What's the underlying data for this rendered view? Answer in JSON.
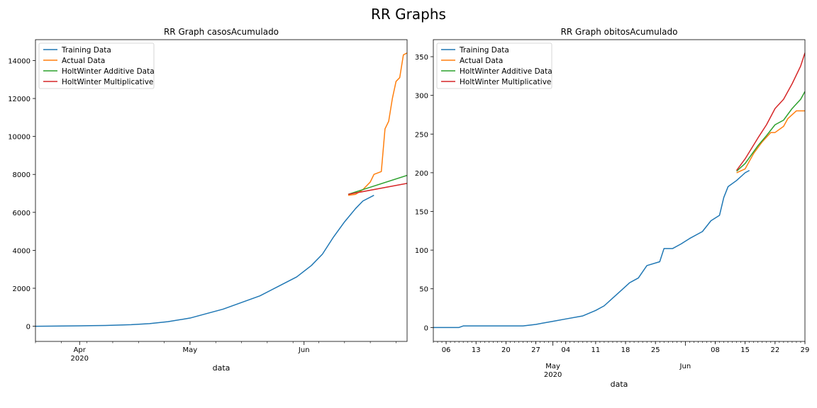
{
  "figure_title": "RR Graphs",
  "chart_data": [
    {
      "type": "line",
      "title": "RR Graph casosAcumulado",
      "xlabel": "data",
      "ylabel": "",
      "ylim": [
        -800,
        15100
      ],
      "xlim_dates": [
        "2020-03-20",
        "2020-06-29"
      ],
      "x_major_ticks": [
        {
          "date": "2020-04-01",
          "label": "Apr",
          "sublabel": "2020"
        },
        {
          "date": "2020-05-01",
          "label": "May",
          "sublabel": ""
        },
        {
          "date": "2020-06-01",
          "label": "Jun",
          "sublabel": ""
        }
      ],
      "y_ticks": [
        0,
        2000,
        4000,
        6000,
        8000,
        10000,
        12000,
        14000
      ],
      "legend": {
        "placement": "top-left",
        "entries": [
          "Training Data",
          "Actual Data",
          "HoltWinter Additive Data",
          "HoltWinter Multiplicative"
        ]
      },
      "series": [
        {
          "name": "Training Data",
          "color": "#1f77b4",
          "points": [
            [
              "2020-03-20",
              0
            ],
            [
              "2020-03-25",
              5
            ],
            [
              "2020-04-01",
              20
            ],
            [
              "2020-04-08",
              40
            ],
            [
              "2020-04-15",
              80
            ],
            [
              "2020-04-20",
              140
            ],
            [
              "2020-04-25",
              240
            ],
            [
              "2020-05-01",
              430
            ],
            [
              "2020-05-05",
              640
            ],
            [
              "2020-05-10",
              900
            ],
            [
              "2020-05-15",
              1250
            ],
            [
              "2020-05-20",
              1600
            ],
            [
              "2020-05-25",
              2100
            ],
            [
              "2020-05-30",
              2600
            ],
            [
              "2020-06-03",
              3200
            ],
            [
              "2020-06-06",
              3800
            ],
            [
              "2020-06-09",
              4700
            ],
            [
              "2020-06-12",
              5500
            ],
            [
              "2020-06-15",
              6200
            ],
            [
              "2020-06-17",
              6600
            ],
            [
              "2020-06-20",
              6900
            ]
          ]
        },
        {
          "name": "Actual Data",
          "color": "#ff7f0e",
          "points": [
            [
              "2020-06-13",
              6900
            ],
            [
              "2020-06-15",
              6950
            ],
            [
              "2020-06-17",
              7200
            ],
            [
              "2020-06-19",
              7600
            ],
            [
              "2020-06-20",
              8000
            ],
            [
              "2020-06-22",
              8150
            ],
            [
              "2020-06-23",
              10400
            ],
            [
              "2020-06-24",
              10800
            ],
            [
              "2020-06-25",
              12000
            ],
            [
              "2020-06-26",
              12900
            ],
            [
              "2020-06-27",
              13100
            ],
            [
              "2020-06-28",
              14300
            ],
            [
              "2020-06-29",
              14400
            ]
          ]
        },
        {
          "name": "HoltWinter Additive Data",
          "color": "#2ca02c",
          "points": [
            [
              "2020-06-13",
              6950
            ],
            [
              "2020-06-29",
              7950
            ]
          ]
        },
        {
          "name": "HoltWinter Multiplicative",
          "color": "#d62728",
          "points": [
            [
              "2020-06-13",
              6950
            ],
            [
              "2020-06-29",
              7530
            ]
          ]
        }
      ]
    },
    {
      "type": "line",
      "title": "RR Graph obitosAcumulado",
      "xlabel": "data",
      "ylabel": "",
      "ylim": [
        -18,
        372
      ],
      "xlim_dates": [
        "2020-04-03",
        "2020-06-29"
      ],
      "x_major_ticks": [
        {
          "date": "2020-05-01",
          "label": "May",
          "sublabel": "2020"
        },
        {
          "date": "2020-06-01",
          "label": "Jun",
          "sublabel": ""
        }
      ],
      "x_minor_ticks": [
        {
          "date": "2020-04-06",
          "label": "06"
        },
        {
          "date": "2020-04-13",
          "label": "13"
        },
        {
          "date": "2020-04-20",
          "label": "20"
        },
        {
          "date": "2020-04-27",
          "label": "27"
        },
        {
          "date": "2020-05-04",
          "label": "04"
        },
        {
          "date": "2020-05-11",
          "label": "11"
        },
        {
          "date": "2020-05-18",
          "label": "18"
        },
        {
          "date": "2020-05-25",
          "label": "25"
        },
        {
          "date": "2020-06-08",
          "label": "08"
        },
        {
          "date": "2020-06-15",
          "label": "15"
        },
        {
          "date": "2020-06-22",
          "label": "22"
        },
        {
          "date": "2020-06-29",
          "label": "29"
        }
      ],
      "y_ticks": [
        0,
        50,
        100,
        150,
        200,
        250,
        300,
        350
      ],
      "legend": {
        "placement": "top-left",
        "entries": [
          "Training Data",
          "Actual Data",
          "HoltWinter Additive Data",
          "HoltWinter Multiplicative"
        ]
      },
      "series": [
        {
          "name": "Training Data",
          "color": "#1f77b4",
          "points": [
            [
              "2020-04-03",
              0
            ],
            [
              "2020-04-09",
              0
            ],
            [
              "2020-04-10",
              2
            ],
            [
              "2020-04-24",
              2
            ],
            [
              "2020-04-27",
              4
            ],
            [
              "2020-05-01",
              8
            ],
            [
              "2020-05-04",
              11
            ],
            [
              "2020-05-08",
              15
            ],
            [
              "2020-05-11",
              22
            ],
            [
              "2020-05-13",
              28
            ],
            [
              "2020-05-15",
              38
            ],
            [
              "2020-05-17",
              48
            ],
            [
              "2020-05-19",
              58
            ],
            [
              "2020-05-21",
              64
            ],
            [
              "2020-05-23",
              80
            ],
            [
              "2020-05-26",
              85
            ],
            [
              "2020-05-27",
              102
            ],
            [
              "2020-05-29",
              102
            ],
            [
              "2020-05-31",
              108
            ],
            [
              "2020-06-02",
              115
            ],
            [
              "2020-06-05",
              124
            ],
            [
              "2020-06-07",
              138
            ],
            [
              "2020-06-09",
              145
            ],
            [
              "2020-06-10",
              168
            ],
            [
              "2020-06-11",
              182
            ],
            [
              "2020-06-13",
              190
            ],
            [
              "2020-06-15",
              200
            ],
            [
              "2020-06-16",
              203
            ]
          ]
        },
        {
          "name": "Actual Data",
          "color": "#ff7f0e",
          "points": [
            [
              "2020-06-13",
              200
            ],
            [
              "2020-06-15",
              205
            ],
            [
              "2020-06-17",
              225
            ],
            [
              "2020-06-19",
              240
            ],
            [
              "2020-06-21",
              252
            ],
            [
              "2020-06-22",
              252
            ],
            [
              "2020-06-24",
              260
            ],
            [
              "2020-06-25",
              270
            ],
            [
              "2020-06-26",
              275
            ],
            [
              "2020-06-27",
              280
            ],
            [
              "2020-06-29",
              280
            ]
          ]
        },
        {
          "name": "HoltWinter Additive Data",
          "color": "#2ca02c",
          "points": [
            [
              "2020-06-13",
              202
            ],
            [
              "2020-06-15",
              212
            ],
            [
              "2020-06-18",
              235
            ],
            [
              "2020-06-20",
              248
            ],
            [
              "2020-06-22",
              262
            ],
            [
              "2020-06-24",
              268
            ],
            [
              "2020-06-26",
              283
            ],
            [
              "2020-06-28",
              295
            ],
            [
              "2020-06-29",
              305
            ]
          ]
        },
        {
          "name": "HoltWinter Multiplicative",
          "color": "#d62728",
          "points": [
            [
              "2020-06-13",
              203
            ],
            [
              "2020-06-15",
              218
            ],
            [
              "2020-06-18",
              245
            ],
            [
              "2020-06-20",
              262
            ],
            [
              "2020-06-22",
              283
            ],
            [
              "2020-06-24",
              295
            ],
            [
              "2020-06-26",
              315
            ],
            [
              "2020-06-28",
              338
            ],
            [
              "2020-06-29",
              355
            ]
          ]
        }
      ]
    }
  ]
}
